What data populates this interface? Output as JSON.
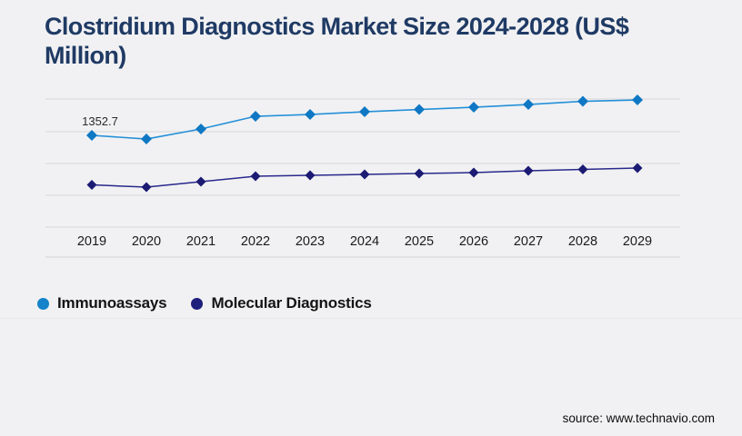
{
  "page": {
    "background_color": "#f1f1f3"
  },
  "header": {
    "title": "Clostridium Diagnostics Market Size 2024-2028 (US$ Million)",
    "title_color": "#1f3a64"
  },
  "chart_data": {
    "type": "line",
    "title": "Clostridium Diagnostics Market Size 2024-2028 (US$ Million)",
    "categories": [
      "2019",
      "2020",
      "2021",
      "2022",
      "2023",
      "2024",
      "2025",
      "2026",
      "2027",
      "2028",
      "2029"
    ],
    "series": [
      {
        "name": "Immunoassays",
        "marker": "diamond",
        "color": "#0e78c4",
        "line_color": "#2490d8",
        "values": [
          1352.7,
          1298.9,
          1446.1,
          1633.6,
          1660.4,
          1700.5,
          1734.0,
          1767.5,
          1807.7,
          1854.5,
          1874.6
        ]
      },
      {
        "name": "Molecular Diagnostics",
        "marker": "diamond",
        "color": "#1b1b74",
        "line_color": "#28288c",
        "values": [
          622.6,
          589.2,
          669.5,
          749.8,
          763.2,
          776.6,
          790.0,
          803.4,
          830.2,
          850.3,
          870.4
        ]
      }
    ],
    "data_labels": [
      {
        "series": 0,
        "index": 0,
        "text": "1352.7"
      }
    ],
    "xlabel": "",
    "ylabel": "",
    "ylim": [
      0,
      1950
    ],
    "y_axis_visible": false,
    "grid": "horizontal",
    "gridline_color": "#d7d7d9",
    "axis_label_color": "#1b1b1b",
    "legend_position": "bottom-left",
    "note": "Only the 2019 Immunoassays value (1352.7) is labeled on the chart; all other values are estimated from point positions."
  },
  "legend": {
    "items": [
      {
        "label": "Immunoassays",
        "color": "#1583c9"
      },
      {
        "label": "Molecular Diagnostics",
        "color": "#1e1e7d"
      }
    ]
  },
  "footer": {
    "source_label": "source: www.technavio.com"
  }
}
